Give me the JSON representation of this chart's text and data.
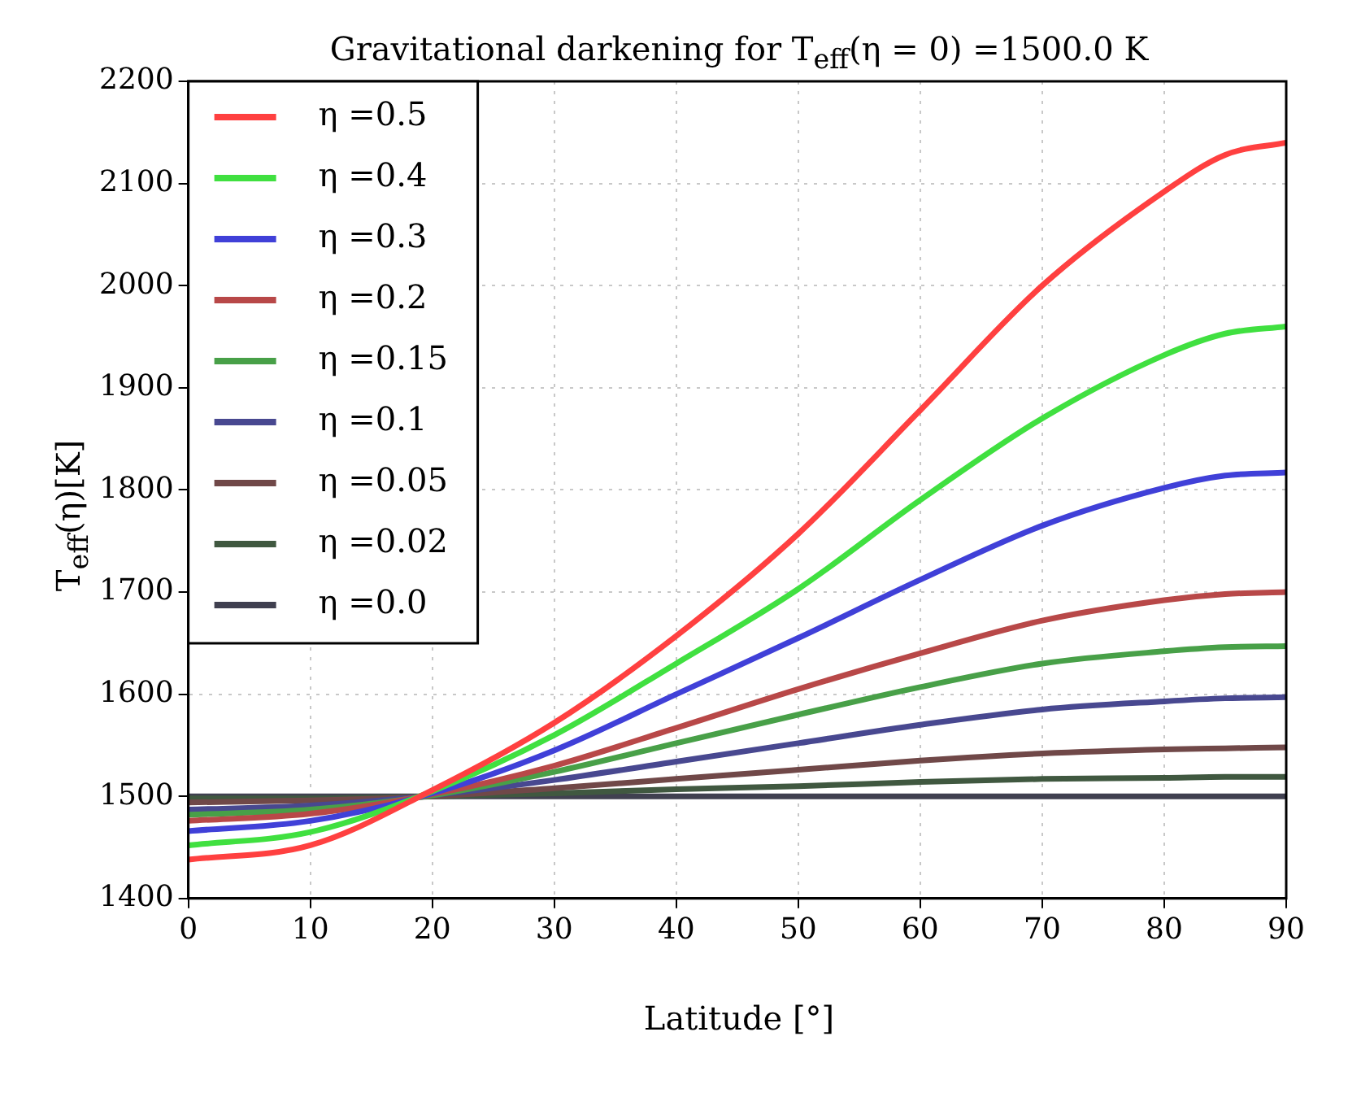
{
  "chart_data": {
    "type": "line",
    "title": "Gravitational darkening for T$_{eff}$(η = 0) =1500.0 K",
    "xlabel": "Latitude [°]",
    "ylabel": "T$_{eff}$(η)[K]",
    "x": [
      0,
      10,
      20,
      30,
      40,
      50,
      60,
      70,
      80,
      85,
      90
    ],
    "xlim": [
      0,
      90
    ],
    "xticks": [
      0,
      10,
      20,
      30,
      40,
      50,
      60,
      70,
      80,
      90
    ],
    "ylim": [
      1400,
      2200
    ],
    "yticks": [
      1400,
      1500,
      1600,
      1700,
      1800,
      1900,
      2000,
      2100,
      2200
    ],
    "grid": true,
    "legend": "top left",
    "marker": "none",
    "line_style": "solid",
    "series": [
      {
        "name": "η =0.5",
        "color": "#ff4040",
        "values": [
          1438,
          1452,
          1506,
          1572,
          1657,
          1757,
          1878,
          2000,
          2092,
          2128,
          2140
        ]
      },
      {
        "name": "η =0.4",
        "color": "#40e040",
        "values": [
          1452,
          1465,
          1505,
          1560,
          1630,
          1703,
          1790,
          1870,
          1932,
          1953,
          1960
        ]
      },
      {
        "name": "η =0.3",
        "color": "#4040d8",
        "values": [
          1466,
          1476,
          1503,
          1545,
          1600,
          1655,
          1712,
          1765,
          1802,
          1814,
          1817
        ]
      },
      {
        "name": "η =0.2",
        "color": "#b84848",
        "values": [
          1476,
          1483,
          1502,
          1530,
          1567,
          1605,
          1640,
          1672,
          1692,
          1698,
          1700
        ]
      },
      {
        "name": "η =0.15",
        "color": "#48a048",
        "values": [
          1482,
          1487,
          1501,
          1524,
          1552,
          1580,
          1607,
          1630,
          1642,
          1646,
          1647
        ]
      },
      {
        "name": "η =0.1",
        "color": "#484890",
        "values": [
          1487,
          1491,
          1501,
          1516,
          1534,
          1552,
          1570,
          1585,
          1593,
          1596,
          1597
        ]
      },
      {
        "name": "η =0.05",
        "color": "#704848",
        "values": [
          1494,
          1496,
          1500,
          1508,
          1517,
          1526,
          1535,
          1542,
          1546,
          1547,
          1548
        ]
      },
      {
        "name": "η =0.02",
        "color": "#405840",
        "values": [
          1498,
          1498,
          1500,
          1503,
          1507,
          1510,
          1514,
          1517,
          1518,
          1519,
          1519
        ]
      },
      {
        "name": "η =0.0",
        "color": "#404050",
        "values": [
          1500,
          1500,
          1500,
          1500,
          1500,
          1500,
          1500,
          1500,
          1500,
          1500,
          1500
        ]
      }
    ]
  }
}
